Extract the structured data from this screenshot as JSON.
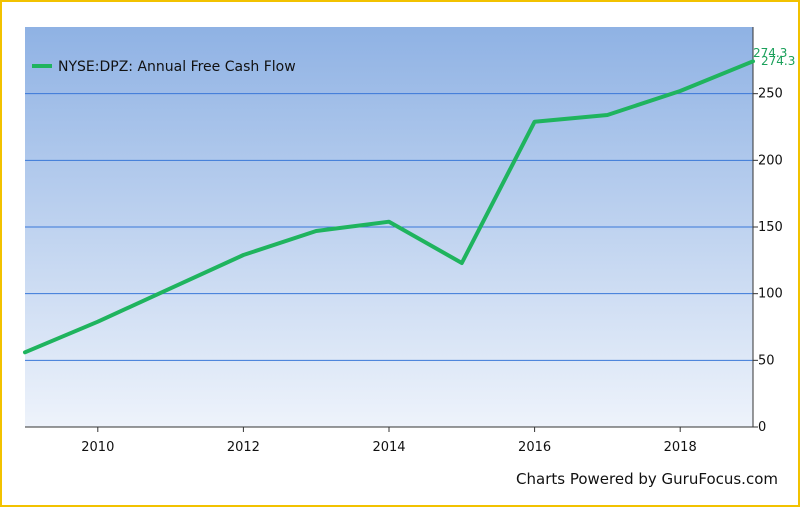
{
  "chart_data": {
    "type": "line",
    "title": "",
    "xlabel": "",
    "ylabel": "",
    "x": [
      2009,
      2010,
      2011,
      2012,
      2013,
      2014,
      2015,
      2016,
      2017,
      2018,
      2019
    ],
    "series": [
      {
        "name": "NYSE:DPZ: Annual Free Cash Flow",
        "color": "#1fb45e",
        "values": [
          56,
          79,
          104,
          129,
          147,
          154,
          123,
          229,
          234,
          252,
          274.3
        ]
      }
    ],
    "x_ticks": [
      "2010",
      "2012",
      "2014",
      "2016",
      "2018"
    ],
    "y_ticks": [
      "0",
      "50",
      "100",
      "150",
      "200",
      "250"
    ],
    "xlim": [
      2009,
      2019
    ],
    "ylim": [
      0,
      300
    ],
    "grid": "horizontal",
    "legend_position": "top-left",
    "end_labels": [
      "274.3",
      "274.3"
    ],
    "background_gradient": [
      "#8fb2e4",
      "#eef3fb"
    ],
    "grid_color": "#3a78d8",
    "border_color": "#f2c200"
  },
  "credit": "Charts Powered by GuruFocus.com"
}
